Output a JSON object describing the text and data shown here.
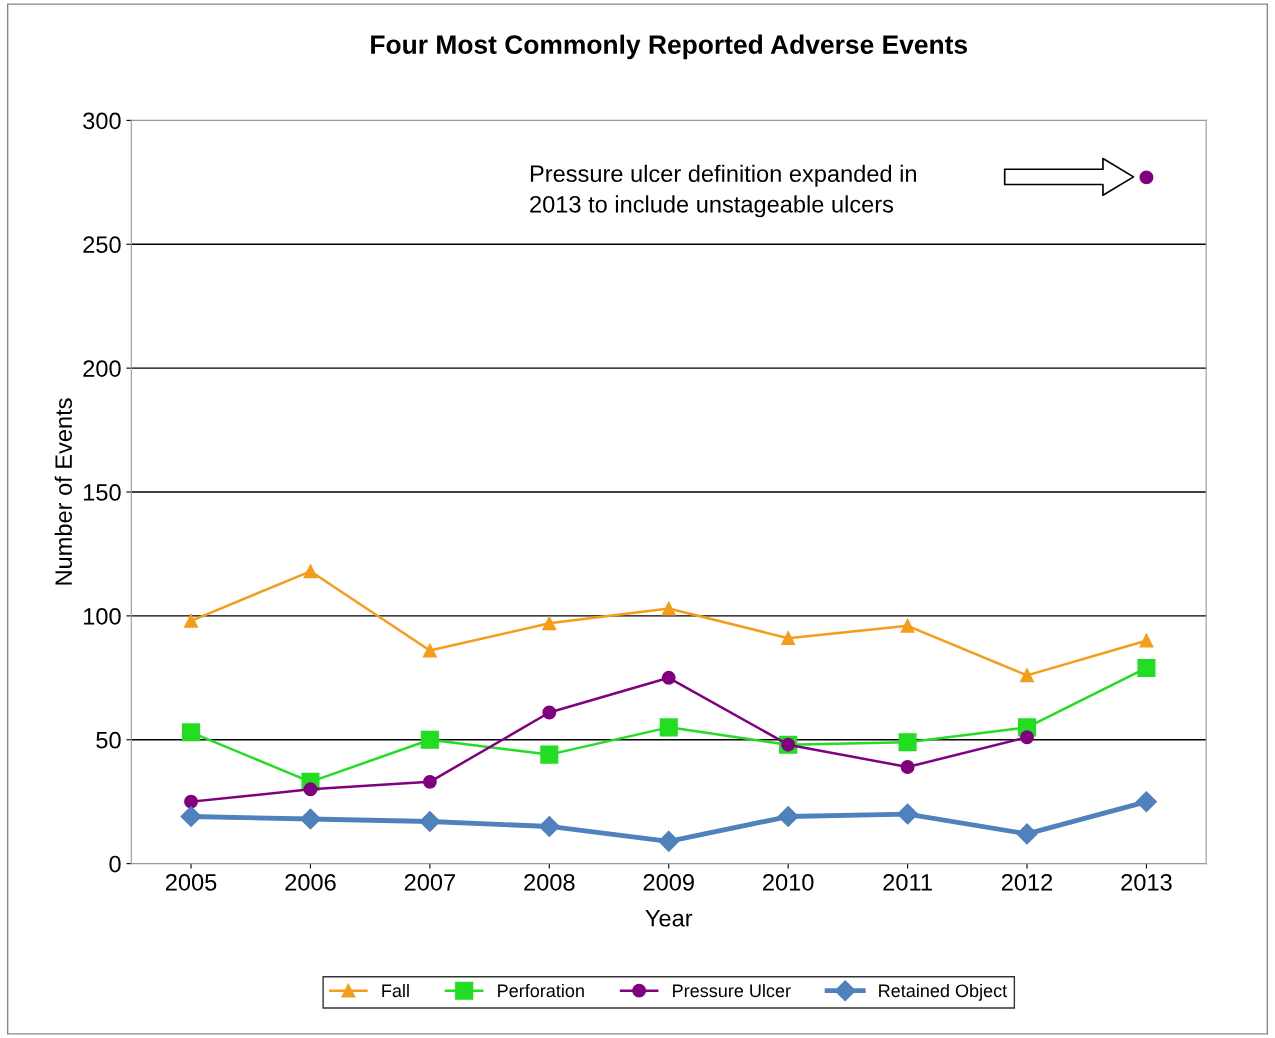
{
  "chart_data": {
    "type": "line",
    "title": "Four Most Commonly Reported Adverse Events",
    "xlabel": "Year",
    "ylabel": "Number of Events",
    "categories": [
      "2005",
      "2006",
      "2007",
      "2008",
      "2009",
      "2010",
      "2011",
      "2012",
      "2013"
    ],
    "series": [
      {
        "name": "Fall",
        "color": "#f59c1a",
        "marker": "triangle",
        "values": [
          98,
          118,
          86,
          97,
          103,
          91,
          96,
          76,
          90
        ]
      },
      {
        "name": "Perforation",
        "color": "#22dd22",
        "marker": "square",
        "values": [
          53,
          33,
          50,
          44,
          55,
          48,
          49,
          55,
          79
        ]
      },
      {
        "name": "Pressure Ulcer",
        "color": "#800080",
        "marker": "circle",
        "values": [
          25,
          30,
          33,
          61,
          75,
          48,
          39,
          51,
          null
        ]
      },
      {
        "type": "scatter",
        "color": "#800080",
        "marker": "circle",
        "values": [
          null,
          null,
          null,
          null,
          null,
          null,
          null,
          null,
          277
        ]
      },
      {
        "name": "Retained Object",
        "color": "#4f81bd",
        "marker": "diamond",
        "values": [
          19,
          18,
          17,
          15,
          9,
          19,
          20,
          12,
          25
        ]
      }
    ],
    "ylim": [
      0,
      300
    ],
    "yticks": [
      0,
      50,
      100,
      150,
      200,
      250,
      300
    ],
    "grid": "y",
    "legend": "bottom",
    "annotations": [
      "Pressure ulcer definition expanded in\n2013 to include unstageable ulcers"
    ]
  }
}
